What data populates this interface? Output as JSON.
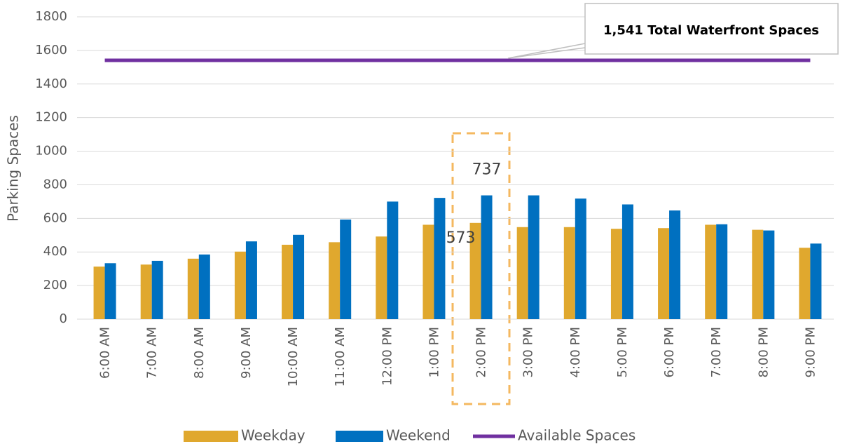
{
  "chart_data": {
    "type": "bar",
    "y_label": "Parking Spaces",
    "annotation": "1,541 Total Waterfront Spaces",
    "categories": [
      "6:00 AM",
      "7:00 AM",
      "8:00 AM",
      "9:00 AM",
      "10:00 AM",
      "11:00 AM",
      "12:00 PM",
      "1:00 PM",
      "2:00 PM",
      "3:00 PM",
      "4:00 PM",
      "5:00 PM",
      "6:00 PM",
      "7:00 PM",
      "8:00 PM",
      "9:00 PM"
    ],
    "series": [
      {
        "name": "Weekday",
        "type": "bar",
        "color": "#e0a82e",
        "values": [
          313,
          325,
          360,
          402,
          443,
          458,
          492,
          562,
          573,
          548,
          548,
          538,
          542,
          562,
          532,
          425
        ]
      },
      {
        "name": "Weekend",
        "type": "bar",
        "color": "#0070c0",
        "values": [
          333,
          347,
          385,
          463,
          502,
          593,
          700,
          722,
          737,
          737,
          718,
          683,
          647,
          565,
          528,
          450
        ]
      },
      {
        "name": "Available Spaces",
        "type": "line",
        "color": "#7030a0",
        "values": [
          1541,
          1541,
          1541,
          1541,
          1541,
          1541,
          1541,
          1541,
          1541,
          1541,
          1541,
          1541,
          1541,
          1541,
          1541,
          1541
        ]
      }
    ],
    "ylim": [
      0,
      1800
    ],
    "yticks": [
      0,
      200,
      400,
      600,
      800,
      1000,
      1200,
      1400,
      1600,
      1800
    ],
    "grid": true,
    "legend": "bottom"
  }
}
